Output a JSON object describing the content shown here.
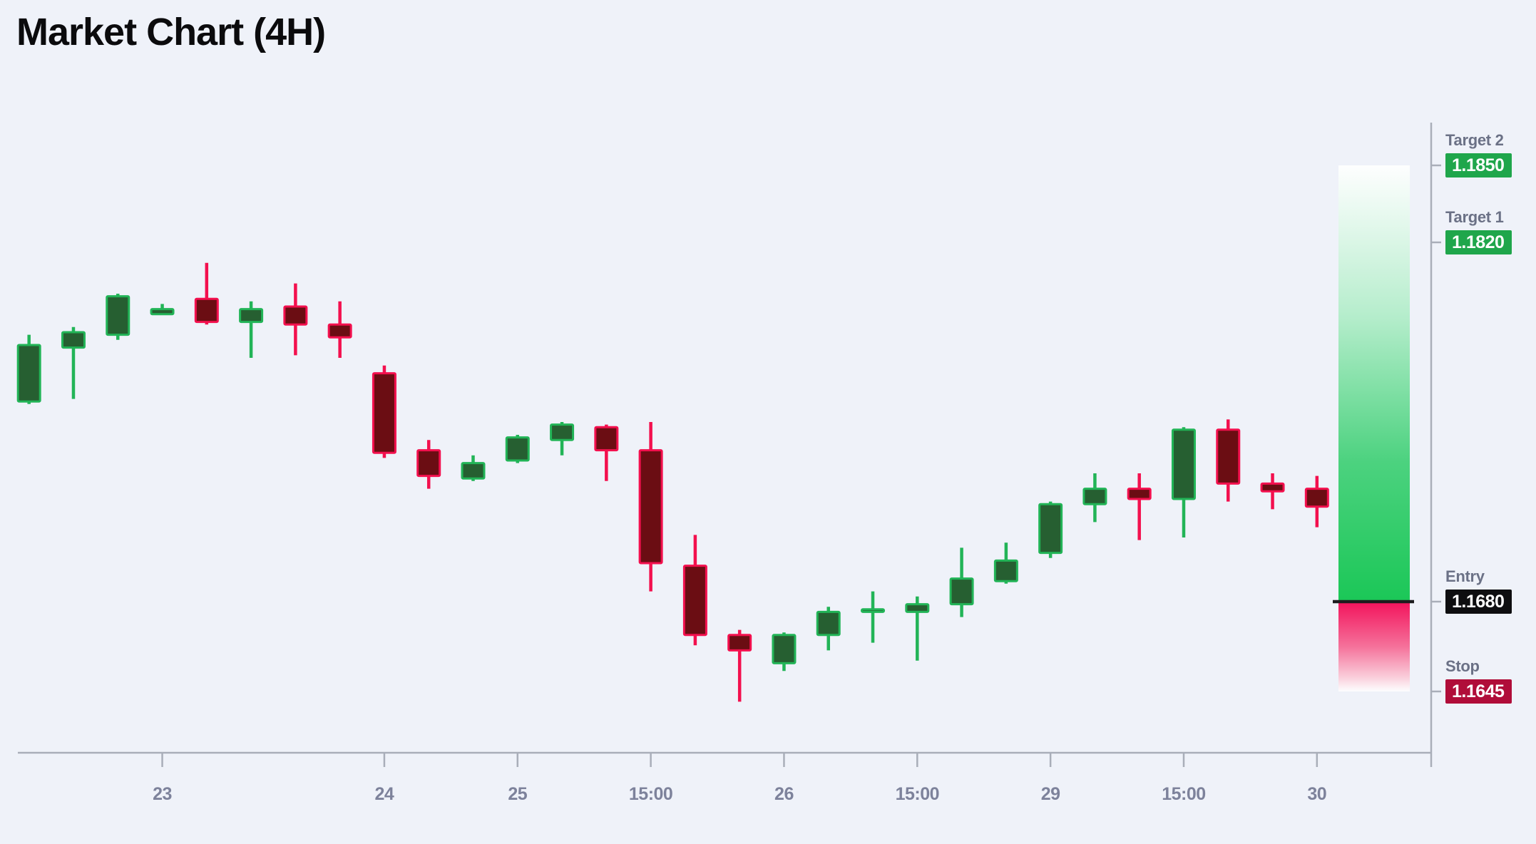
{
  "title": "Market Chart (4H)",
  "colors": {
    "background": "#eff2f9",
    "title": "#0b0b0d",
    "axis": "#a9aeb9",
    "axis_label": "#7d829b",
    "level_label": "#6b7186",
    "bullish_border": "#22b457",
    "bullish_fill": "#265f31",
    "bearish_border": "#f3104e",
    "bearish_fill": "#6b0d13",
    "profit_zone": "#1bc757",
    "loss_zone": "#f2135c",
    "entry_line": "#1c1c1e",
    "badge_target": "#1fa64b",
    "badge_entry": "#0e0e10",
    "badge_stop": "#b00d39",
    "badge_text": "#ffffff"
  },
  "levels": [
    {
      "name": "Target 2",
      "value": "1.1850",
      "price": 1.185,
      "badge_color": "#1fa64b"
    },
    {
      "name": "Target 1",
      "value": "1.1820",
      "price": 1.182,
      "badge_color": "#1fa64b"
    },
    {
      "name": "Entry",
      "value": "1.1680",
      "price": 1.168,
      "badge_color": "#0e0e10"
    },
    {
      "name": "Stop",
      "value": "1.1645",
      "price": 1.1645,
      "badge_color": "#b00d39"
    }
  ],
  "chart_data": {
    "type": "candlestick",
    "title": "Market Chart (4H)",
    "timeframe": "4H",
    "price_precision": 4,
    "grid": false,
    "legend": "none",
    "ylim": [
      1.1621,
      1.1867
    ],
    "y_axis": {
      "labeled_prices": [
        1.185,
        1.182,
        1.168,
        1.1645
      ],
      "side": "right"
    },
    "x_axis": {
      "tick_labels": [
        {
          "candle_index": 3,
          "label": "23"
        },
        {
          "candle_index": 8,
          "label": "24"
        },
        {
          "candle_index": 11,
          "label": "25"
        },
        {
          "candle_index": 14,
          "label": "15:00"
        },
        {
          "candle_index": 17,
          "label": "26"
        },
        {
          "candle_index": 20,
          "label": "15:00"
        },
        {
          "candle_index": 23,
          "label": "29"
        },
        {
          "candle_index": 26,
          "label": "15:00"
        },
        {
          "candle_index": 29,
          "label": "30"
        }
      ]
    },
    "candles": [
      {
        "o": 1.1758,
        "h": 1.1784,
        "l": 1.1757,
        "c": 1.178
      },
      {
        "o": 1.1779,
        "h": 1.1787,
        "l": 1.1759,
        "c": 1.1785
      },
      {
        "o": 1.1784,
        "h": 1.18,
        "l": 1.1782,
        "c": 1.1799
      },
      {
        "o": 1.1792,
        "h": 1.1796,
        "l": 1.1792,
        "c": 1.1794
      },
      {
        "o": 1.1798,
        "h": 1.1812,
        "l": 1.1788,
        "c": 1.1789
      },
      {
        "o": 1.1789,
        "h": 1.1797,
        "l": 1.1775,
        "c": 1.1794
      },
      {
        "o": 1.1795,
        "h": 1.1804,
        "l": 1.1776,
        "c": 1.1788
      },
      {
        "o": 1.1788,
        "h": 1.1797,
        "l": 1.1775,
        "c": 1.1783
      },
      {
        "o": 1.1769,
        "h": 1.1772,
        "l": 1.1736,
        "c": 1.1738
      },
      {
        "o": 1.1739,
        "h": 1.1743,
        "l": 1.1724,
        "c": 1.1729
      },
      {
        "o": 1.1728,
        "h": 1.1737,
        "l": 1.1727,
        "c": 1.1734
      },
      {
        "o": 1.1735,
        "h": 1.1745,
        "l": 1.1734,
        "c": 1.1744
      },
      {
        "o": 1.1743,
        "h": 1.175,
        "l": 1.1737,
        "c": 1.1749
      },
      {
        "o": 1.1748,
        "h": 1.1749,
        "l": 1.1727,
        "c": 1.1739
      },
      {
        "o": 1.1739,
        "h": 1.175,
        "l": 1.1684,
        "c": 1.1695
      },
      {
        "o": 1.1694,
        "h": 1.1706,
        "l": 1.1663,
        "c": 1.1667
      },
      {
        "o": 1.1667,
        "h": 1.1669,
        "l": 1.1641,
        "c": 1.1661
      },
      {
        "o": 1.1656,
        "h": 1.1668,
        "l": 1.1653,
        "c": 1.1667
      },
      {
        "o": 1.1667,
        "h": 1.1678,
        "l": 1.1661,
        "c": 1.1676
      },
      {
        "o": 1.1676,
        "h": 1.1684,
        "l": 1.1664,
        "c": 1.1677
      },
      {
        "o": 1.1676,
        "h": 1.1682,
        "l": 1.1657,
        "c": 1.1679
      },
      {
        "o": 1.1679,
        "h": 1.1701,
        "l": 1.1674,
        "c": 1.1689
      },
      {
        "o": 1.1688,
        "h": 1.1703,
        "l": 1.1687,
        "c": 1.1696
      },
      {
        "o": 1.1699,
        "h": 1.1719,
        "l": 1.1697,
        "c": 1.1718
      },
      {
        "o": 1.1718,
        "h": 1.173,
        "l": 1.1711,
        "c": 1.1724
      },
      {
        "o": 1.1724,
        "h": 1.173,
        "l": 1.1704,
        "c": 1.172
      },
      {
        "o": 1.172,
        "h": 1.1748,
        "l": 1.1705,
        "c": 1.1747
      },
      {
        "o": 1.1747,
        "h": 1.1751,
        "l": 1.1719,
        "c": 1.1726
      },
      {
        "o": 1.1726,
        "h": 1.173,
        "l": 1.1716,
        "c": 1.1723
      },
      {
        "o": 1.1724,
        "h": 1.1729,
        "l": 1.1709,
        "c": 1.1717
      }
    ],
    "annotations": {
      "entry": 1.168,
      "stop": 1.1645,
      "target1": 1.182,
      "target2": 1.185,
      "profit_zone": {
        "from": 1.168,
        "to": 1.185
      },
      "loss_zone": {
        "from": 1.1645,
        "to": 1.168
      }
    }
  }
}
